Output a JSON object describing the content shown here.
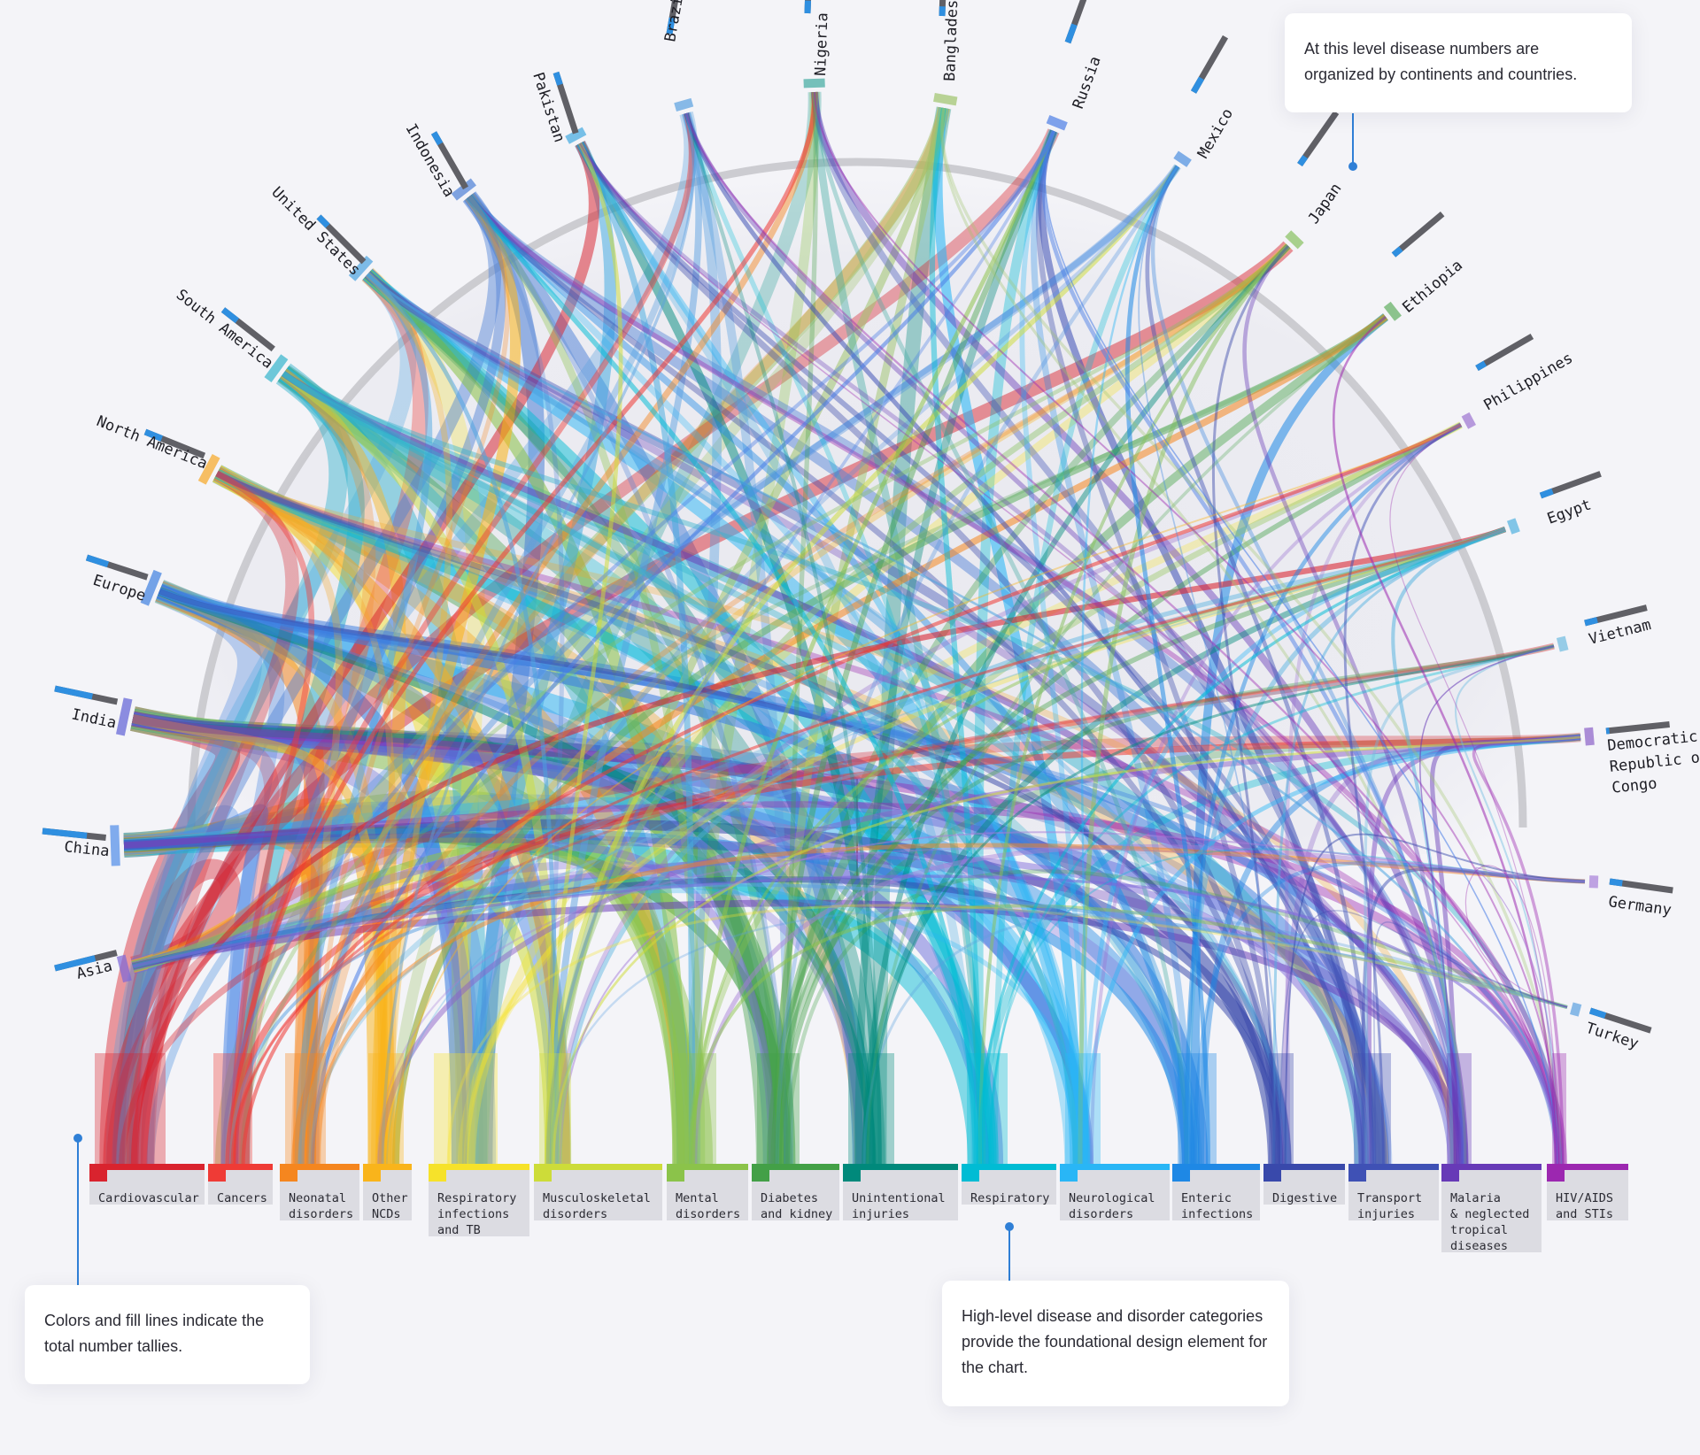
{
  "categories": [
    {
      "label": "Cardiovascular",
      "color": "#d9232e"
    },
    {
      "label": "Cancers",
      "color": "#ef3b36"
    },
    {
      "label": "Neonatal\ndisorders",
      "color": "#f5861f"
    },
    {
      "label": "Other\nNCDs",
      "color": "#f9b41b"
    },
    {
      "label": "Respiratory\ninfections\nand TB",
      "color": "#f6e22a"
    },
    {
      "label": "Musculoskeletal\ndisorders",
      "color": "#cddc39"
    },
    {
      "label": "Mental\ndisorders",
      "color": "#8bc34a"
    },
    {
      "label": "Diabetes\nand kidney",
      "color": "#43a047"
    },
    {
      "label": "Unintentional\ninjuries",
      "color": "#00897b"
    },
    {
      "label": "Respiratory",
      "color": "#00bcd4"
    },
    {
      "label": "Neurological\ndisorders",
      "color": "#29b6f6"
    },
    {
      "label": "Enteric\ninfections",
      "color": "#1e88e5"
    },
    {
      "label": "Digestive",
      "color": "#3949ab"
    },
    {
      "label": "Transport\ninjuries",
      "color": "#3f51b5"
    },
    {
      "label": "Malaria\n& neglected\ntropical\ndiseases",
      "color": "#673ab7"
    },
    {
      "label": "HIV/AIDS\nand STIs",
      "color": "#9c27b0"
    }
  ],
  "regions": [
    {
      "label": "Asia"
    },
    {
      "label": "China"
    },
    {
      "label": "India"
    },
    {
      "label": "Europe"
    },
    {
      "label": "North America"
    },
    {
      "label": "South America"
    },
    {
      "label": "United States"
    },
    {
      "label": "Indonesia"
    },
    {
      "label": "Pakistan"
    },
    {
      "label": "Brazil"
    },
    {
      "label": "Nigeria"
    },
    {
      "label": "Bangladesh"
    },
    {
      "label": "Russia"
    },
    {
      "label": "Mexico"
    },
    {
      "label": "Japan"
    },
    {
      "label": "Ethiopia"
    },
    {
      "label": "Philippines"
    },
    {
      "label": "Egypt"
    },
    {
      "label": "Vietnam"
    },
    {
      "label": "Democratic\nRepublic of\nCongo"
    },
    {
      "label": "Germany"
    },
    {
      "label": "Turkey"
    }
  ],
  "callouts": {
    "top": "At this level disease numbers are organized by continents and countries.",
    "left": "Colors and fill lines indicate the total number tallies.",
    "bottom": "High-level disease and disorder categories provide the foundational design element for the chart."
  },
  "colors": {
    "background": "#f4f4f8",
    "arc": "#c8c8cc",
    "connector": "#2f7fd6",
    "node_bar_blue": "#2f8fe0",
    "node_bar_gray": "#606066"
  }
}
